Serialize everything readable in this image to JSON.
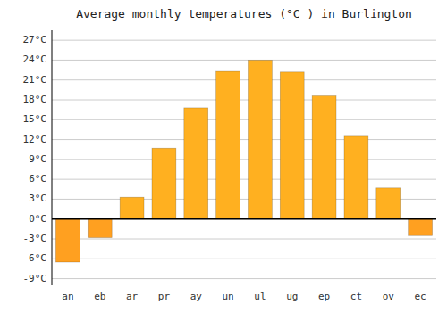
{
  "chart_data": {
    "type": "bar",
    "title": "Average monthly temperatures (°C ) in Burlington",
    "categories": [
      "an",
      "eb",
      "ar",
      "pr",
      "ay",
      "un",
      "ul",
      "ug",
      "ep",
      "ct",
      "ov",
      "ec"
    ],
    "values": [
      -6.5,
      -2.8,
      3.3,
      10.7,
      16.8,
      22.3,
      24.0,
      22.2,
      18.6,
      12.5,
      4.7,
      -2.5
    ],
    "colors": [
      "#FFA020",
      "#FFA020",
      "#FFB020",
      "#FFB020",
      "#FFB020",
      "#FFB020",
      "#FFB020",
      "#FFB020",
      "#FFB020",
      "#FFB020",
      "#FFB020",
      "#FFA020"
    ],
    "ylim": [
      -10,
      28.5
    ],
    "yticks": [
      {
        "value": -9,
        "label": "-9°C"
      },
      {
        "value": -6,
        "label": "-6°C"
      },
      {
        "value": -3,
        "label": "-3°C"
      },
      {
        "value": 0,
        "label": "0°C"
      },
      {
        "value": 3,
        "label": "3°C"
      },
      {
        "value": 6,
        "label": "6°C"
      },
      {
        "value": 9,
        "label": "9°C"
      },
      {
        "value": 12,
        "label": "12°C"
      },
      {
        "value": 15,
        "label": "15°C"
      },
      {
        "value": 18,
        "label": "18°C"
      },
      {
        "value": 21,
        "label": "21°C"
      },
      {
        "value": 24,
        "label": "24°C"
      },
      {
        "value": 27,
        "label": "27°C"
      }
    ],
    "grid": true
  }
}
